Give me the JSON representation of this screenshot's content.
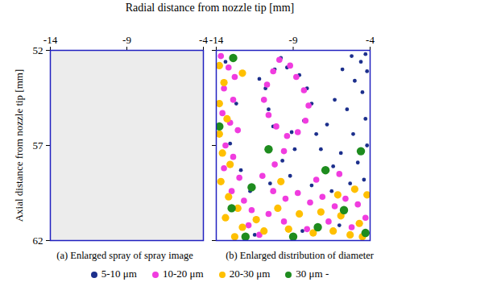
{
  "chart_data": [
    {
      "type": "image",
      "title": "(a) Enlarged spray of spray image",
      "xlabel": "Radial distance from nozzle tip [mm]",
      "ylabel": "Axial distance from nozzle tip [mm]",
      "xlim": [
        -14,
        -4
      ],
      "ylim": [
        52,
        62
      ],
      "xticks": [
        -14,
        -9,
        -4
      ],
      "yticks": [
        52,
        57,
        62
      ]
    },
    {
      "type": "scatter",
      "title": "(b) Enlarged distribution of diameter",
      "xlim": [
        -14,
        -4
      ],
      "ylim": [
        52,
        62
      ],
      "xticks": [
        -14,
        -9,
        -4
      ],
      "yticks": [
        52,
        57,
        62
      ],
      "tick_labels": "x",
      "legend": "bottom",
      "series": [
        {
          "name": "5-10 μm",
          "color": "#1c2f8c",
          "x": [
            -4.3,
            -4.6,
            -5.2,
            -4.2,
            -5.0,
            -5.8,
            -4.5,
            -6.3,
            -5.5,
            -4.3,
            -6.8,
            -5.1,
            -4.2,
            -5.9,
            -4.8,
            -7.2,
            -6.4,
            -9.8,
            -10.2,
            -8.6,
            -8.1,
            -7.8,
            -8.3,
            -9.1,
            -10.3,
            -10.6,
            -10.8,
            -9.4,
            -11.2,
            -8.9,
            -9.7,
            -7.5,
            -13.4,
            -12.7,
            -13.1,
            -12.4,
            -11.8,
            -10.5,
            -9.2,
            -7.8,
            -6.5,
            -5.3,
            -4.4,
            -11.5,
            -8.4,
            -6.0
          ],
          "y": [
            52.2,
            52.6,
            52.3,
            53.1,
            53.6,
            53.0,
            54.2,
            54.6,
            55.1,
            55.6,
            55.9,
            56.4,
            57.0,
            57.4,
            57.9,
            57.2,
            58.1,
            52.4,
            53.0,
            53.3,
            54.0,
            54.8,
            55.7,
            56.3,
            56.0,
            55.1,
            54.0,
            52.9,
            53.5,
            57.2,
            57.8,
            56.4,
            52.6,
            54.8,
            56.9,
            58.3,
            59.4,
            59.0,
            58.6,
            59.1,
            59.4,
            59.0,
            58.8,
            61.7,
            61.5,
            61.2
          ]
        },
        {
          "name": "10-20 μm",
          "color": "#f03cdf",
          "x": [
            -13.7,
            -13.2,
            -12.8,
            -13.5,
            -12.9,
            -13.6,
            -13.1,
            -12.6,
            -13.4,
            -12.9,
            -13.5,
            -12.5,
            -13.0,
            -12.2,
            -11.7,
            -11.9,
            -11.2,
            -9.9,
            -10.3,
            -10.7,
            -10.9,
            -10.6,
            -10.1,
            -9.4,
            -8.7,
            -8.2,
            -8.0,
            -8.3,
            -8.8,
            -9.2,
            -9.6,
            -10.2,
            -11.0,
            -10.3,
            -9.5,
            -8.7,
            -7.9,
            -7.1,
            -6.3,
            -5.6,
            -4.8,
            -4.3,
            -5.2,
            -6.7,
            -8.1,
            -9.6,
            -10.6,
            -7.5,
            -6.0
          ],
          "y": [
            52.3,
            52.9,
            53.4,
            54.0,
            54.6,
            55.3,
            55.8,
            56.2,
            57.0,
            57.6,
            58.2,
            58.7,
            59.4,
            59.9,
            60.4,
            61.2,
            61.7,
            52.5,
            53.1,
            53.8,
            54.6,
            55.4,
            56.0,
            56.5,
            56.3,
            55.7,
            54.9,
            54.1,
            53.4,
            52.8,
            57.3,
            58.0,
            58.6,
            59.4,
            59.8,
            59.5,
            60.0,
            59.7,
            60.2,
            59.8,
            60.1,
            60.8,
            61.3,
            61.0,
            61.4,
            61.0,
            60.6,
            58.8,
            58.5
          ]
        },
        {
          "name": "20-30 μm",
          "color": "#ffc000",
          "x": [
            -13.8,
            -13.5,
            -13.8,
            -13.3,
            -13.8,
            -13.6,
            -13.1,
            -13.7,
            -13.2,
            -12.6,
            -13.4,
            -12.3,
            -12.8,
            -11.4,
            -10.9,
            -10.0,
            -9.3,
            -8.6,
            -7.7,
            -7.2,
            -6.4,
            -5.9,
            -5.3,
            -4.7,
            -4.2,
            -5.0,
            -6.1,
            -4.5,
            -12.3,
            -9.8
          ],
          "y": [
            52.8,
            53.7,
            54.8,
            55.6,
            56.4,
            57.4,
            58.0,
            58.9,
            59.7,
            60.3,
            60.8,
            61.3,
            61.8,
            60.9,
            61.5,
            60.3,
            61.4,
            60.6,
            61.6,
            60.5,
            61.5,
            60.7,
            61.7,
            61.1,
            59.6,
            59.3,
            59.6,
            61.8,
            53.2,
            58.9
          ]
        },
        {
          "name": "30 μm -",
          "color": "#1e8c1e",
          "x": [
            -13.8,
            -12.9,
            -13.0,
            -12.1,
            -10.6,
            -9.0,
            -7.4,
            -5.7,
            -4.3,
            -4.6,
            -11.7,
            -6.9
          ],
          "y": [
            56.0,
            52.4,
            60.3,
            61.8,
            57.2,
            61.8,
            61.3,
            60.4,
            61.6,
            57.3,
            59.2,
            58.3
          ]
        }
      ]
    }
  ]
}
